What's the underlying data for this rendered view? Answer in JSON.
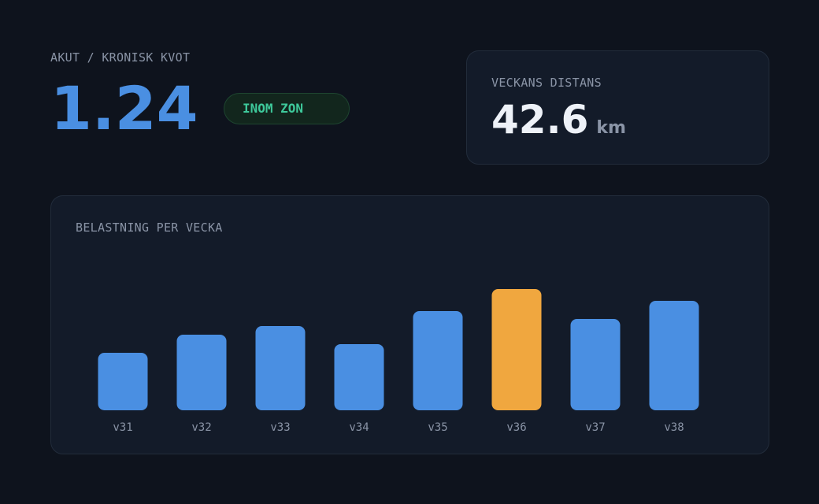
{
  "header": {
    "label": "AKUT / KRONISK KVOT",
    "value": "1.24",
    "badge": "INOM ZON"
  },
  "distance": {
    "label": "VECKANS DISTANS",
    "value": "42.6",
    "unit": "km"
  },
  "chart_data": {
    "type": "bar",
    "title": "BELASTNING PER VECKA",
    "categories": [
      "v31",
      "v32",
      "v33",
      "v34",
      "v35",
      "v36",
      "v37",
      "v38"
    ],
    "values": [
      73,
      96,
      107,
      84,
      126,
      154,
      116,
      139
    ],
    "colors": [
      "#4a8fe2",
      "#4a8fe2",
      "#4a8fe2",
      "#4a8fe2",
      "#4a8fe2",
      "#f0a73f",
      "#4a8fe2",
      "#4a8fe2"
    ]
  }
}
